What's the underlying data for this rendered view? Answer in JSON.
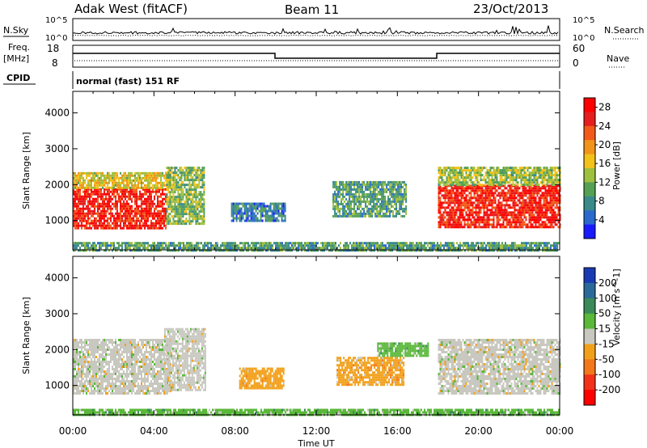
{
  "header": {
    "site": "Adak West (fitACF)",
    "beam": "Beam 11",
    "date": "23/Oct/2013"
  },
  "params": {
    "nsky_label": "N.Sky",
    "nsearch_label": "N.Search",
    "freq_label_1": "Freq.",
    "freq_label_2": "[MHz]",
    "nave_label": "Nave",
    "cpid_label": "CPID",
    "cpid_value": "normal (fast) 151 RF",
    "noise_ticks": [
      "10^5",
      "10^0"
    ],
    "freq_ticks": [
      "18",
      "8"
    ],
    "nave_ticks": [
      "60",
      "0"
    ]
  },
  "chart_data": [
    {
      "type": "heatmap",
      "name": "power",
      "ylabel": "Slant Range [km]",
      "xlabel": "Time UT",
      "x_ticks": [
        "00:00",
        "04:00",
        "08:00",
        "12:00",
        "16:00",
        "20:00",
        "00:00"
      ],
      "xlim_hours": [
        0,
        24
      ],
      "y_ticks": [
        1000,
        2000,
        3000,
        4000
      ],
      "ylim": [
        180,
        4600
      ],
      "colorbar": {
        "label": "Power [dB]",
        "ticks": [
          4,
          8,
          12,
          16,
          20,
          24,
          28
        ],
        "range": [
          0,
          30
        ],
        "colors": [
          "#1a1aff",
          "#2a6acc",
          "#3a8a8a",
          "#55a055",
          "#9fbf3f",
          "#f2c21a",
          "#f2941a",
          "#f25a1a",
          "#e61e1e",
          "#ff0000"
        ]
      },
      "regions": [
        {
          "t0": 0.0,
          "t1": 4.6,
          "r0": 800,
          "r1": 1900,
          "level": 27
        },
        {
          "t0": 0.0,
          "t1": 4.8,
          "r0": 1900,
          "r1": 2350,
          "level": 16
        },
        {
          "t0": 4.6,
          "t1": 6.5,
          "r0": 900,
          "r1": 2500,
          "level": 12
        },
        {
          "t0": 7.8,
          "t1": 10.5,
          "r0": 1000,
          "r1": 1500,
          "level": 6
        },
        {
          "t0": 12.8,
          "t1": 16.4,
          "r0": 1100,
          "r1": 2100,
          "level": 9
        },
        {
          "t0": 18.0,
          "t1": 24.0,
          "r0": 800,
          "r1": 2000,
          "level": 27
        },
        {
          "t0": 18.0,
          "t1": 24.0,
          "r0": 2000,
          "r1": 2500,
          "level": 13
        },
        {
          "t0": 0.0,
          "t1": 24.0,
          "r0": 180,
          "r1": 400,
          "level": 9
        }
      ]
    },
    {
      "type": "heatmap",
      "name": "velocity",
      "ylabel": "Slant Range [km]",
      "xlabel": "Time UT",
      "x_ticks": [
        "00:00",
        "04:00",
        "08:00",
        "12:00",
        "16:00",
        "20:00",
        "00:00"
      ],
      "xlim_hours": [
        0,
        24
      ],
      "y_ticks": [
        1000,
        2000,
        3000,
        4000
      ],
      "ylim": [
        180,
        4600
      ],
      "colorbar": {
        "label": "Velocity [m s^-1]",
        "ticks": [
          200,
          100,
          50,
          15,
          -15,
          -50,
          -100,
          -200
        ],
        "colors": [
          "#1a3ab4",
          "#2a6a9a",
          "#3a8a5a",
          "#5ab83a",
          "#c8c8c0",
          "#f2a01a",
          "#f2781a",
          "#f2321a",
          "#ff0000"
        ]
      },
      "regions": [
        {
          "t0": 0.0,
          "t1": 4.8,
          "r0": 800,
          "r1": 2300,
          "class": 4
        },
        {
          "t0": 4.5,
          "t1": 6.5,
          "r0": 900,
          "r1": 2600,
          "class": 4
        },
        {
          "t0": 8.2,
          "t1": 10.4,
          "r0": 900,
          "r1": 1500,
          "class": 5
        },
        {
          "t0": 13.0,
          "t1": 16.3,
          "r0": 1000,
          "r1": 1800,
          "class": 5
        },
        {
          "t0": 15.0,
          "t1": 17.5,
          "r0": 1800,
          "r1": 2200,
          "class": 3
        },
        {
          "t0": 18.0,
          "t1": 24.0,
          "r0": 800,
          "r1": 2300,
          "class": 4
        },
        {
          "t0": 0.0,
          "t1": 24.0,
          "r0": 180,
          "r1": 350,
          "class": 3
        }
      ]
    }
  ]
}
